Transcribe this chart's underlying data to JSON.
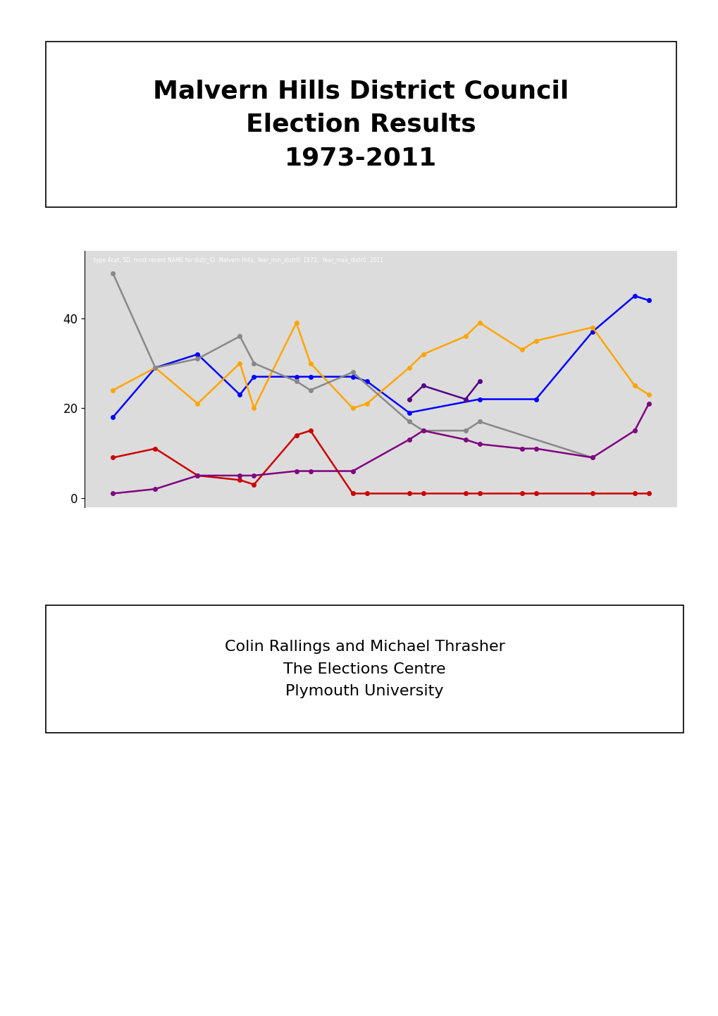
{
  "title": "Malvern Hills District Council\nElection Results\n1973-2011",
  "subtitle_text": "type 4cat; SD, most recent NAME for distr_ID: Malvern Hills; Year_min_distr0: 1973;  Year_max_distr0: 2011",
  "credit_line1": "Colin Rallings and Michael Thrasher",
  "credit_line2": "The Elections Centre",
  "credit_line3": "Plymouth University",
  "series": {
    "blue": {
      "color": "#0000FF",
      "data": [
        [
          1973,
          18
        ],
        [
          1976,
          29
        ],
        [
          1979,
          32
        ],
        [
          1982,
          23
        ],
        [
          1983,
          27
        ],
        [
          1986,
          27
        ],
        [
          1987,
          27
        ],
        [
          1990,
          27
        ],
        [
          1991,
          26
        ],
        [
          1994,
          19
        ],
        [
          1999,
          22
        ],
        [
          2003,
          22
        ],
        [
          2007,
          37
        ],
        [
          2010,
          45
        ],
        [
          2011,
          44
        ]
      ]
    },
    "orange": {
      "color": "#FFA500",
      "data": [
        [
          1973,
          24
        ],
        [
          1976,
          29
        ],
        [
          1979,
          21
        ],
        [
          1982,
          30
        ],
        [
          1983,
          20
        ],
        [
          1986,
          39
        ],
        [
          1987,
          30
        ],
        [
          1990,
          20
        ],
        [
          1991,
          21
        ],
        [
          1994,
          29
        ],
        [
          1995,
          32
        ],
        [
          1998,
          36
        ],
        [
          1999,
          39
        ],
        [
          2002,
          33
        ],
        [
          2003,
          35
        ],
        [
          2007,
          38
        ],
        [
          2010,
          25
        ],
        [
          2011,
          23
        ]
      ]
    },
    "gray": {
      "color": "#888888",
      "data": [
        [
          1973,
          50
        ],
        [
          1976,
          29
        ],
        [
          1979,
          31
        ],
        [
          1982,
          36
        ],
        [
          1983,
          30
        ],
        [
          1986,
          26
        ],
        [
          1987,
          24
        ],
        [
          1990,
          28
        ],
        [
          1994,
          17
        ],
        [
          1995,
          15
        ],
        [
          1998,
          15
        ],
        [
          1999,
          17
        ],
        [
          2007,
          9
        ]
      ]
    },
    "red": {
      "color": "#CC0000",
      "data": [
        [
          1973,
          9
        ],
        [
          1976,
          11
        ],
        [
          1979,
          5
        ],
        [
          1982,
          4
        ],
        [
          1983,
          3
        ],
        [
          1986,
          14
        ],
        [
          1987,
          15
        ],
        [
          1990,
          1
        ],
        [
          1991,
          1
        ],
        [
          1994,
          1
        ],
        [
          1995,
          1
        ],
        [
          1998,
          1
        ],
        [
          1999,
          1
        ],
        [
          2002,
          1
        ],
        [
          2003,
          1
        ],
        [
          2007,
          1
        ],
        [
          2010,
          1
        ],
        [
          2011,
          1
        ]
      ]
    },
    "purple": {
      "color": "#800080",
      "data": [
        [
          1973,
          1
        ],
        [
          1976,
          2
        ],
        [
          1979,
          5
        ],
        [
          1982,
          5
        ],
        [
          1983,
          5
        ],
        [
          1986,
          6
        ],
        [
          1987,
          6
        ],
        [
          1990,
          6
        ],
        [
          1994,
          13
        ],
        [
          1995,
          15
        ],
        [
          1998,
          13
        ],
        [
          1999,
          12
        ],
        [
          2002,
          11
        ],
        [
          2003,
          11
        ],
        [
          2007,
          9
        ],
        [
          2010,
          15
        ],
        [
          2011,
          21
        ]
      ]
    },
    "dark_purple": {
      "color": "#550088",
      "data": [
        [
          1994,
          22
        ],
        [
          1995,
          25
        ],
        [
          1998,
          22
        ],
        [
          1999,
          26
        ]
      ]
    }
  },
  "yticks": [
    0,
    20,
    40
  ],
  "ylim": [
    -2,
    55
  ],
  "xlim": [
    1971,
    2013
  ],
  "bg_color": "#DCDCDC",
  "fig_bg": "#FFFFFF"
}
